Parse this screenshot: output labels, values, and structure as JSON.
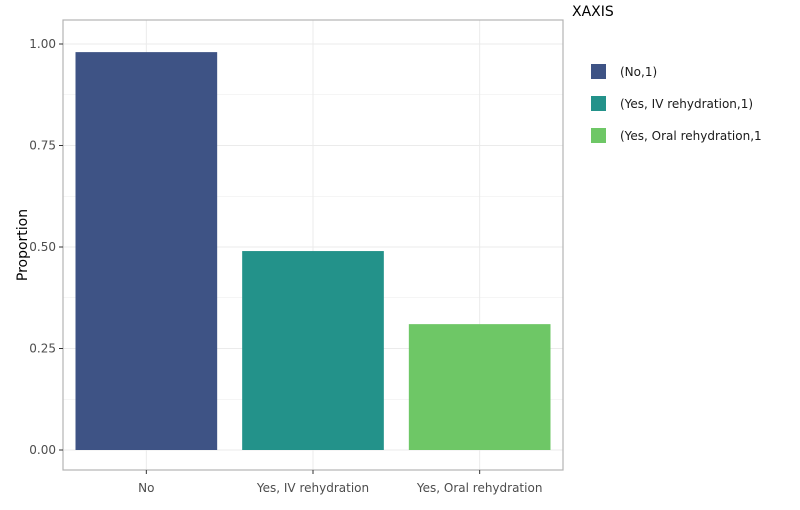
{
  "chart_data": {
    "type": "bar",
    "categories": [
      "No",
      "Yes, IV rehydration",
      "Yes, Oral rehydration"
    ],
    "values": [
      0.98,
      0.49,
      0.31
    ],
    "colors": [
      "#3e5385",
      "#23928a",
      "#6ec766"
    ],
    "xlabel": "",
    "ylabel": "Proportion",
    "ylim": [
      0,
      1.05
    ],
    "yticks": [
      0,
      0.25,
      0.5,
      0.75,
      1.0
    ],
    "ytick_labels": [
      "0.00",
      "0.25",
      "0.50",
      "0.75",
      "1.00"
    ],
    "grid": true,
    "legend": {
      "title": "XAXIS",
      "placement": "right",
      "entries": [
        "(No,1)",
        "(Yes, IV rehydration,1)",
        "(Yes, Oral rehydration,1"
      ]
    }
  }
}
